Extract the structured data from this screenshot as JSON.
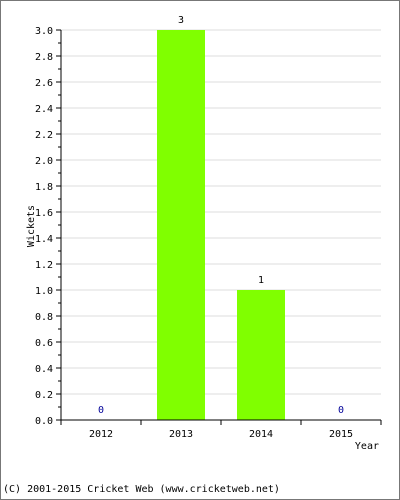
{
  "chart_data": {
    "type": "bar",
    "title": "",
    "xlabel": "Year",
    "ylabel": "Wickets",
    "categories": [
      "2012",
      "2013",
      "2014",
      "2015"
    ],
    "values": [
      0,
      3,
      1,
      0
    ],
    "data_labels": [
      "0",
      "3",
      "1",
      "0"
    ],
    "ylim": [
      0,
      3.0
    ],
    "y_ticks": [
      "0.0",
      "0.2",
      "0.4",
      "0.6",
      "0.8",
      "1.0",
      "1.2",
      "1.4",
      "1.6",
      "1.8",
      "2.0",
      "2.2",
      "2.4",
      "2.6",
      "2.8",
      "3.0"
    ],
    "grid": true,
    "legend": "none",
    "colors": {
      "bar": "#80ff00",
      "grid": "#dddddd",
      "axis": "#000000",
      "data_label_nonzero": "#000000",
      "data_label_zero": "#000099"
    }
  },
  "footer": {
    "copyright": "(C) 2001-2015 Cricket Web (www.cricketweb.net)"
  }
}
